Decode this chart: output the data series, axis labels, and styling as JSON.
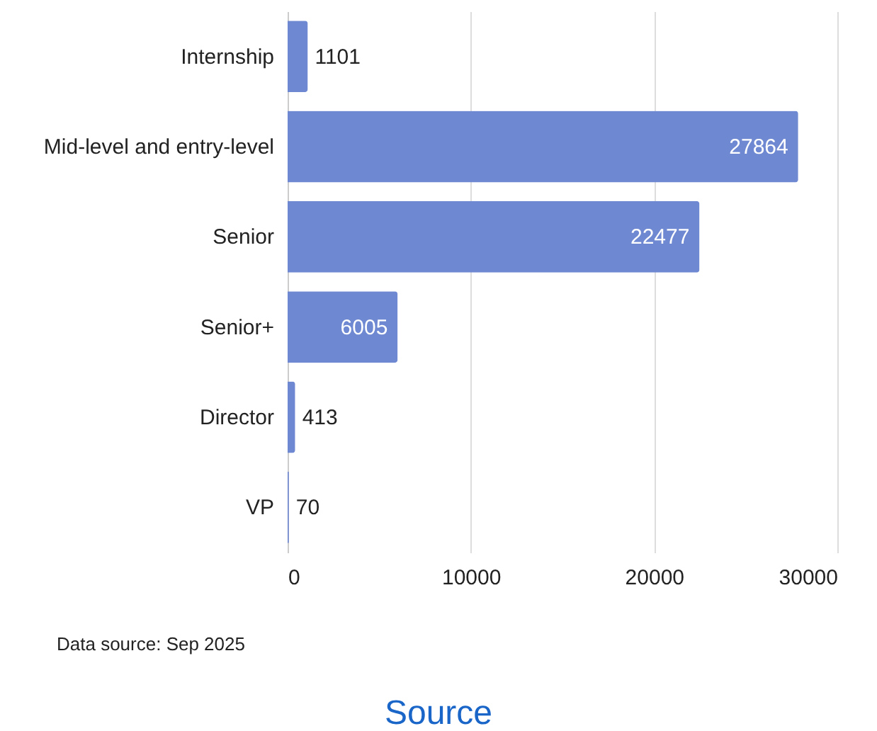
{
  "chart_data": {
    "type": "bar",
    "orientation": "horizontal",
    "categories": [
      "Internship",
      "Mid-level and entry-level",
      "Senior",
      "Senior+",
      "Director",
      "VP"
    ],
    "values": [
      1101,
      27864,
      22477,
      6005,
      413,
      70
    ],
    "color": "#6f88d2",
    "xlim": [
      0,
      30000
    ],
    "xticks": [
      0,
      10000,
      20000,
      30000
    ],
    "grid": "x",
    "data_labels": true,
    "annotations": [
      "Data source: Sep 2025",
      "Source"
    ]
  }
}
